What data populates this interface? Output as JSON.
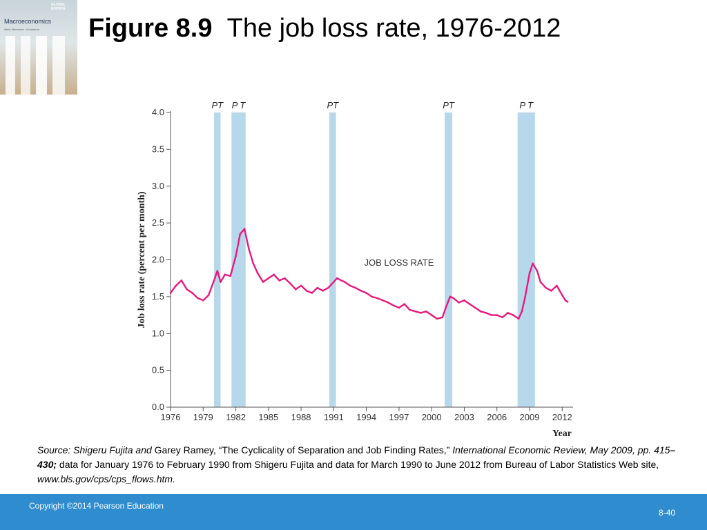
{
  "slide": {
    "title_figure": "Figure 8.9",
    "title_text": "The job loss rate, 1976-2012",
    "book": {
      "title": "Macroeconomics",
      "edition_badge": "GLOBAL EDITION",
      "authors": "Abel • Bernanke • Croushore"
    },
    "source": {
      "part1": "Source: Shigeru Fujita and ",
      "part2": "Garey Ramey, “The Cyclicality of Separation and Job Finding Rates,” ",
      "part3": "International Economic Review, May 2009, pp. 415",
      "part4": "–430;",
      "part5": " data for January 1976 to February 1990 from Shigeru Fujita and data for March 1990 to June 2012 from Bureau of Labor Statistics Web site, ",
      "part6": "www.bls.gov/cps/cps_flows.htm."
    },
    "footer": {
      "copyright": "Copyright ©2014 Pearson Education",
      "page": "8-40"
    }
  },
  "chart_data": {
    "type": "line",
    "title": "",
    "xlabel": "Year",
    "ylabel": "Job loss rate (percent per month)",
    "xlim": [
      1976,
      2013
    ],
    "ylim": [
      0,
      4.0
    ],
    "x_ticks": [
      1976,
      1979,
      1982,
      1985,
      1988,
      1991,
      1994,
      1997,
      2000,
      2003,
      2006,
      2009,
      2012
    ],
    "y_ticks": [
      "0.0",
      "0.5",
      "1.0",
      "1.5",
      "2.0",
      "2.5",
      "3.0",
      "3.5",
      "4.0"
    ],
    "series": [
      {
        "name": "JOB LOSS RATE",
        "color": "#e6197f",
        "x": [
          1976.0,
          1976.5,
          1977.0,
          1977.5,
          1978.0,
          1978.5,
          1979.0,
          1979.5,
          1980.0,
          1980.3,
          1980.6,
          1981.0,
          1981.5,
          1982.0,
          1982.4,
          1982.8,
          1983.2,
          1983.6,
          1984.0,
          1984.5,
          1985.0,
          1985.5,
          1986.0,
          1986.5,
          1987.0,
          1987.5,
          1988.0,
          1988.5,
          1989.0,
          1989.5,
          1990.0,
          1990.5,
          1991.0,
          1991.3,
          1991.7,
          1992.0,
          1992.5,
          1993.0,
          1993.5,
          1994.0,
          1994.5,
          1995.0,
          1995.5,
          1996.0,
          1996.5,
          1997.0,
          1997.5,
          1998.0,
          1998.5,
          1999.0,
          1999.5,
          2000.0,
          2000.5,
          2001.0,
          2001.3,
          2001.7,
          2002.0,
          2002.5,
          2003.0,
          2003.5,
          2004.0,
          2004.5,
          2005.0,
          2005.5,
          2006.0,
          2006.5,
          2007.0,
          2007.5,
          2008.0,
          2008.3,
          2008.6,
          2009.0,
          2009.3,
          2009.7,
          2010.0,
          2010.5,
          2011.0,
          2011.5,
          2012.0,
          2012.3,
          2012.5
        ],
        "values": [
          1.55,
          1.65,
          1.72,
          1.6,
          1.55,
          1.48,
          1.45,
          1.52,
          1.72,
          1.85,
          1.7,
          1.8,
          1.78,
          2.05,
          2.35,
          2.42,
          2.15,
          1.95,
          1.82,
          1.7,
          1.75,
          1.8,
          1.72,
          1.75,
          1.68,
          1.6,
          1.65,
          1.58,
          1.55,
          1.62,
          1.58,
          1.62,
          1.7,
          1.75,
          1.72,
          1.7,
          1.65,
          1.62,
          1.58,
          1.55,
          1.5,
          1.48,
          1.45,
          1.42,
          1.38,
          1.35,
          1.4,
          1.32,
          1.3,
          1.28,
          1.3,
          1.25,
          1.2,
          1.22,
          1.35,
          1.5,
          1.48,
          1.42,
          1.45,
          1.4,
          1.35,
          1.3,
          1.28,
          1.25,
          1.25,
          1.22,
          1.28,
          1.25,
          1.2,
          1.3,
          1.5,
          1.82,
          1.95,
          1.85,
          1.7,
          1.62,
          1.58,
          1.65,
          1.52,
          1.45,
          1.43
        ]
      }
    ],
    "series_label": "JOB LOSS RATE",
    "recession_color": "#b7d7ea",
    "recessions": [
      {
        "start": 1980.0,
        "end": 1980.6,
        "label": "PT"
      },
      {
        "start": 1981.6,
        "end": 1982.9,
        "label": "P T"
      },
      {
        "start": 1990.6,
        "end": 1991.2,
        "label": "PT"
      },
      {
        "start": 2001.2,
        "end": 2001.9,
        "label": "PT"
      },
      {
        "start": 2007.9,
        "end": 2009.5,
        "label": "P T"
      }
    ],
    "grid": false,
    "legend": "none"
  }
}
